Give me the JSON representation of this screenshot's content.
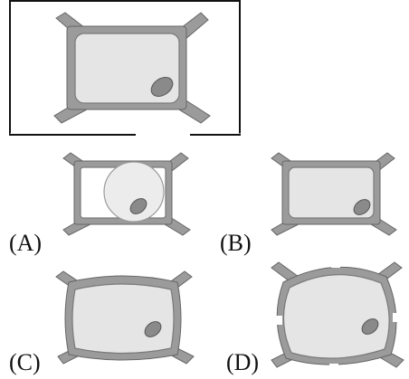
{
  "labels": {
    "a": "(A)",
    "b": "(B)",
    "c": "(C)",
    "d": "(D)"
  },
  "colors": {
    "wall": "#9b9b9b",
    "wall_outline": "#666666",
    "cytoplasm": "#e5e5e5",
    "membrane": "#7a7a7a",
    "nucleus": "#8a8a8a",
    "vacuole": "#ececec",
    "frame": "#111111"
  }
}
